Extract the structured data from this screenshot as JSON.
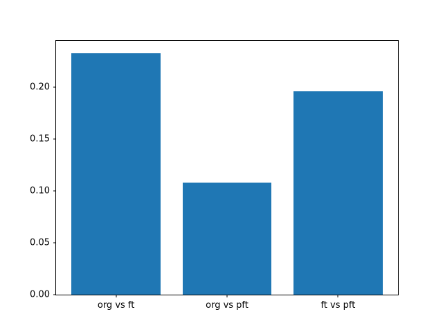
{
  "chart_data": {
    "type": "bar",
    "categories": [
      "org vs ft",
      "org vs pft",
      "ft vs pft"
    ],
    "values": [
      0.233,
      0.108,
      0.196
    ],
    "title": "",
    "xlabel": "",
    "ylabel": "",
    "ylim": [
      0,
      0.245
    ],
    "xlim": [
      -0.54,
      2.54
    ],
    "yticks": [
      0.0,
      0.05,
      0.1,
      0.15,
      0.2
    ],
    "ytick_decimals": 2,
    "bar_width": 0.8,
    "bar_color": "#1f77b4",
    "axis_color": "#000000",
    "background": "#ffffff",
    "grid": false,
    "legend": "none"
  }
}
